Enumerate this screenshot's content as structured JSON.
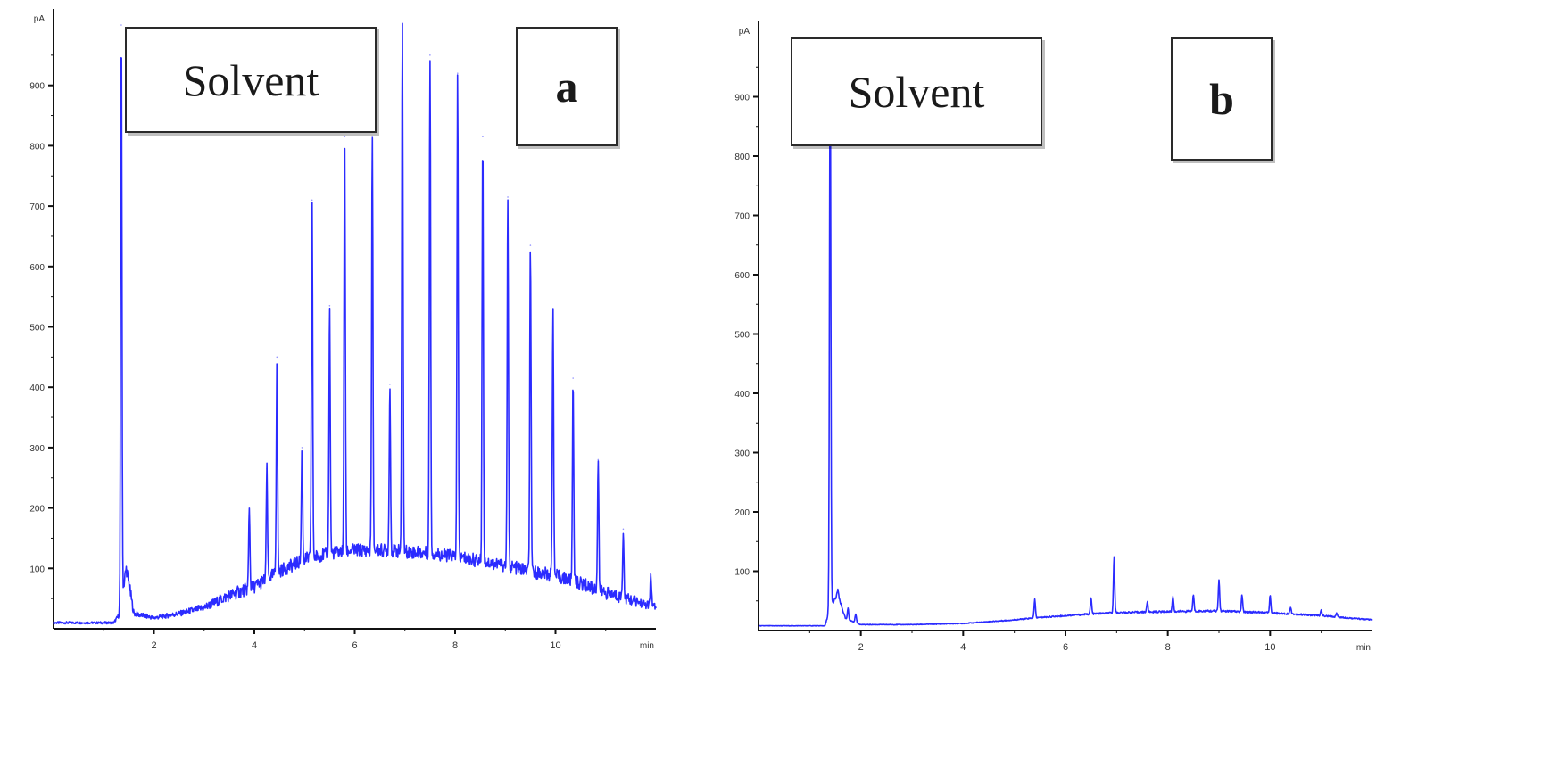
{
  "colors": {
    "trace": "#2b2bff",
    "axis": "#111111",
    "box_border": "#2a2a2a"
  },
  "chart_data": [
    {
      "type": "line",
      "panel_label": "a",
      "annotation": "Solvent",
      "ylabel": "pA",
      "xlabel": "min",
      "xlim": [
        0,
        12
      ],
      "ylim": [
        0,
        1000
      ],
      "x_ticks": [
        "2",
        "4",
        "6",
        "8",
        "10"
      ],
      "x_tick_values": [
        2,
        4,
        6,
        8,
        10
      ],
      "y_ticks": [
        "100",
        "200",
        "300",
        "400",
        "500",
        "600",
        "700",
        "800",
        "900"
      ],
      "y_tick_values": [
        100,
        200,
        300,
        400,
        500,
        600,
        700,
        800,
        900
      ],
      "baseline": [
        [
          0,
          10
        ],
        [
          1.2,
          10
        ],
        [
          1.3,
          22
        ],
        [
          1.45,
          100
        ],
        [
          1.6,
          25
        ],
        [
          2.0,
          18
        ],
        [
          2.5,
          25
        ],
        [
          3.0,
          35
        ],
        [
          3.5,
          55
        ],
        [
          4.0,
          70
        ],
        [
          4.5,
          95
        ],
        [
          5.0,
          115
        ],
        [
          5.5,
          125
        ],
        [
          6.0,
          130
        ],
        [
          6.5,
          130
        ],
        [
          7.0,
          128
        ],
        [
          7.5,
          125
        ],
        [
          8.0,
          120
        ],
        [
          8.5,
          112
        ],
        [
          9.0,
          105
        ],
        [
          9.5,
          95
        ],
        [
          10.0,
          88
        ],
        [
          10.5,
          75
        ],
        [
          11.0,
          60
        ],
        [
          11.5,
          48
        ],
        [
          12.0,
          35
        ]
      ],
      "peaks": [
        {
          "x": 1.35,
          "y": 1000
        },
        {
          "x": 3.9,
          "y": 200
        },
        {
          "x": 4.25,
          "y": 265
        },
        {
          "x": 4.45,
          "y": 450
        },
        {
          "x": 4.95,
          "y": 300
        },
        {
          "x": 5.15,
          "y": 710
        },
        {
          "x": 5.5,
          "y": 535
        },
        {
          "x": 5.8,
          "y": 815
        },
        {
          "x": 6.35,
          "y": 815
        },
        {
          "x": 6.7,
          "y": 405
        },
        {
          "x": 6.95,
          "y": 1000
        },
        {
          "x": 7.5,
          "y": 950
        },
        {
          "x": 8.05,
          "y": 920
        },
        {
          "x": 8.55,
          "y": 815
        },
        {
          "x": 9.05,
          "y": 715
        },
        {
          "x": 9.5,
          "y": 635
        },
        {
          "x": 9.95,
          "y": 530
        },
        {
          "x": 10.35,
          "y": 415
        },
        {
          "x": 10.85,
          "y": 280
        },
        {
          "x": 11.35,
          "y": 165
        },
        {
          "x": 11.9,
          "y": 90
        }
      ]
    },
    {
      "type": "line",
      "panel_label": "b",
      "annotation": "Solvent",
      "ylabel": "pA",
      "xlabel": "min",
      "xlim": [
        0,
        12
      ],
      "ylim": [
        0,
        1000
      ],
      "x_ticks": [
        "2",
        "4",
        "6",
        "8",
        "10"
      ],
      "x_tick_values": [
        2,
        4,
        6,
        8,
        10
      ],
      "y_ticks": [
        "100",
        "200",
        "300",
        "400",
        "500",
        "600",
        "700",
        "800",
        "900"
      ],
      "y_tick_values": [
        100,
        200,
        300,
        400,
        500,
        600,
        700,
        800,
        900
      ],
      "baseline": [
        [
          0,
          8
        ],
        [
          1.3,
          8
        ],
        [
          1.4,
          40
        ],
        [
          1.55,
          60
        ],
        [
          1.7,
          20
        ],
        [
          2.0,
          10
        ],
        [
          3.0,
          10
        ],
        [
          4.0,
          12
        ],
        [
          5.0,
          18
        ],
        [
          5.5,
          22
        ],
        [
          6.0,
          25
        ],
        [
          6.5,
          28
        ],
        [
          7.0,
          30
        ],
        [
          8.0,
          32
        ],
        [
          9.0,
          33
        ],
        [
          10.0,
          30
        ],
        [
          11.0,
          25
        ],
        [
          12.0,
          18
        ]
      ],
      "peaks": [
        {
          "x": 1.4,
          "y": 1000
        },
        {
          "x": 1.55,
          "y": 70
        },
        {
          "x": 1.75,
          "y": 38
        },
        {
          "x": 1.9,
          "y": 28
        },
        {
          "x": 5.4,
          "y": 52
        },
        {
          "x": 6.5,
          "y": 55
        },
        {
          "x": 6.95,
          "y": 125
        },
        {
          "x": 7.6,
          "y": 48
        },
        {
          "x": 8.1,
          "y": 58
        },
        {
          "x": 8.5,
          "y": 60
        },
        {
          "x": 9.0,
          "y": 85
        },
        {
          "x": 9.45,
          "y": 60
        },
        {
          "x": 10.0,
          "y": 58
        },
        {
          "x": 10.4,
          "y": 40
        },
        {
          "x": 11.0,
          "y": 35
        },
        {
          "x": 11.3,
          "y": 30
        }
      ]
    }
  ]
}
